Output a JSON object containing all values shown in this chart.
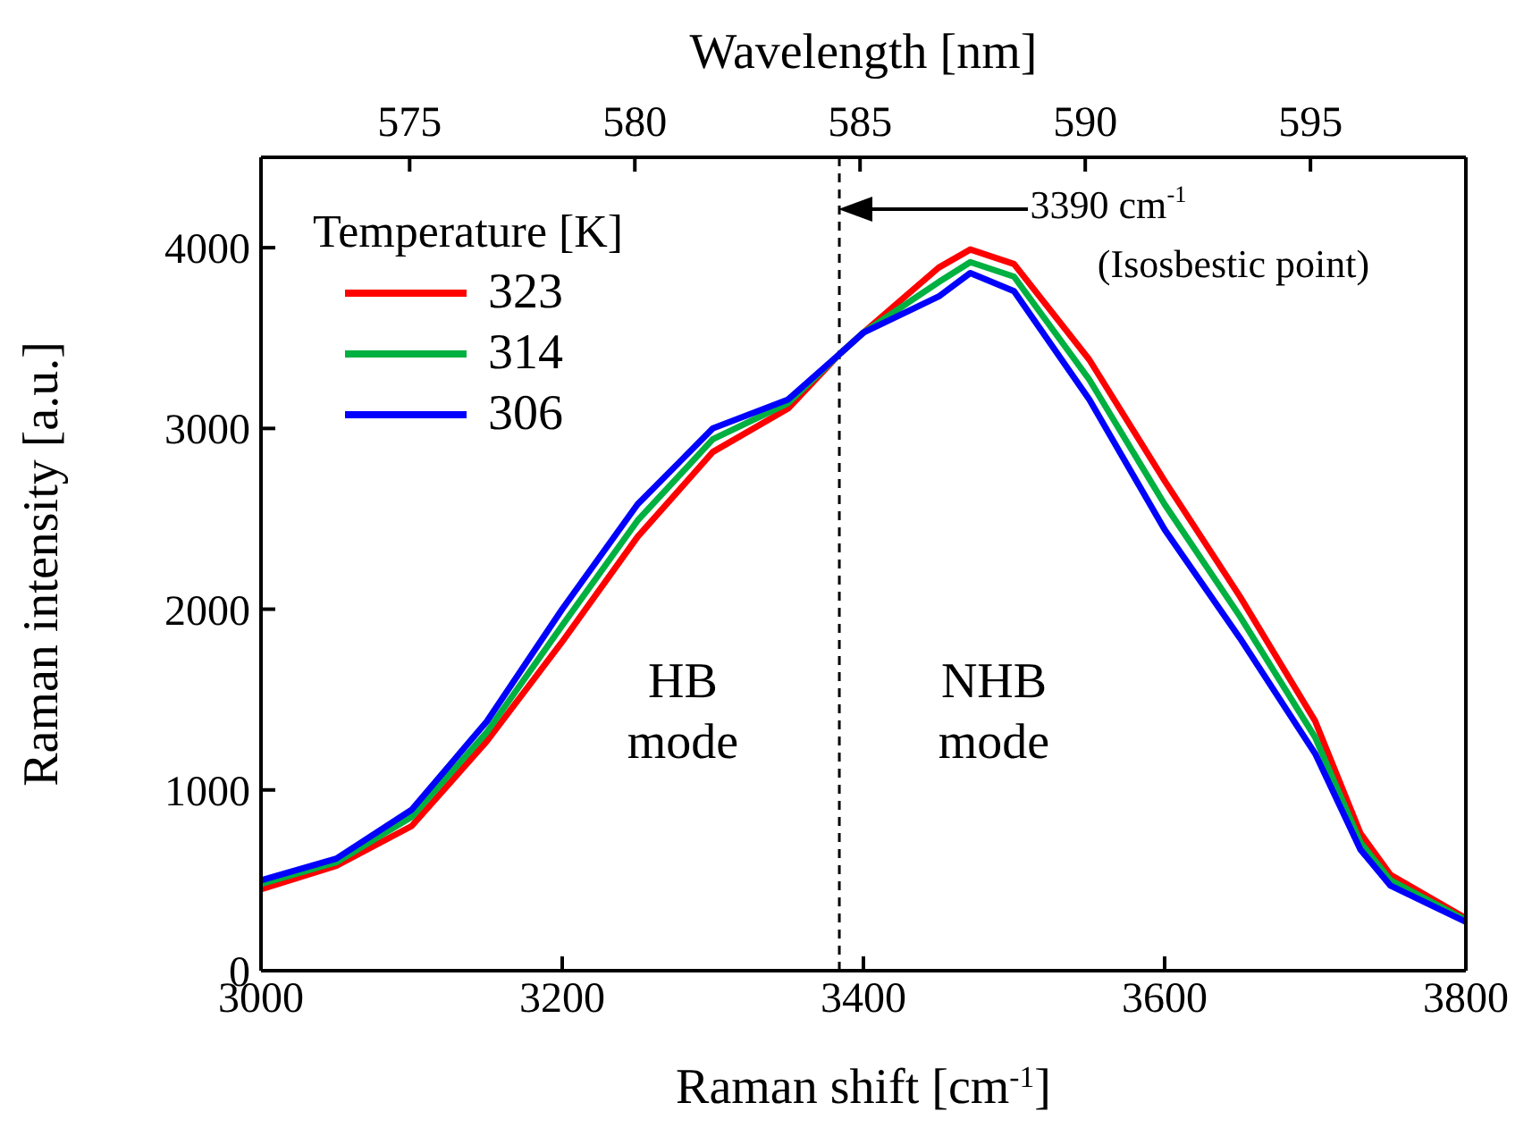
{
  "chart_data": {
    "type": "line",
    "xlabel": "Raman shift [cm$^{-1}$]",
    "ylabel": "Raman intensity [a.u.]",
    "x2label": "Wavelength [nm]",
    "legend_title": "Temperature [K]",
    "x": [
      3000,
      3050,
      3100,
      3150,
      3200,
      3250,
      3300,
      3350,
      3384,
      3400,
      3450,
      3471,
      3500,
      3550,
      3600,
      3650,
      3700,
      3730,
      3750,
      3800
    ],
    "series": [
      {
        "name": "323",
        "color": "#ff0000",
        "values": [
          450,
          580,
          800,
          1270,
          1820,
          2400,
          2870,
          3110,
          3410,
          3530,
          3890,
          3990,
          3910,
          3380,
          2710,
          2070,
          1380,
          760,
          530,
          290
        ]
      },
      {
        "name": "314",
        "color": "#00b040",
        "values": [
          480,
          600,
          850,
          1320,
          1910,
          2490,
          2940,
          3140,
          3410,
          3530,
          3810,
          3920,
          3840,
          3270,
          2580,
          1960,
          1290,
          710,
          500,
          280
        ]
      },
      {
        "name": "306",
        "color": "#0000ff",
        "values": [
          500,
          620,
          890,
          1380,
          2000,
          2580,
          3000,
          3160,
          3410,
          3530,
          3730,
          3860,
          3760,
          3160,
          2440,
          1840,
          1200,
          670,
          470,
          270
        ]
      }
    ],
    "xlim": [
      3000,
      3800
    ],
    "xticks": [
      3000,
      3200,
      3400,
      3600,
      3800
    ],
    "ylim": [
      0,
      4500
    ],
    "yticks": [
      0,
      1000,
      2000,
      3000,
      4000
    ],
    "x2lim": [
      571.7,
      598.45
    ],
    "x2ticks": [
      575,
      580,
      585,
      590,
      595
    ],
    "ref_lines": [
      {
        "axis": "x",
        "value": 3384,
        "line_style": "dashed",
        "color": "#000000"
      }
    ],
    "annotations": [
      "3390 cm$^{-1}$",
      "(Isosbestic point)",
      "HB",
      "mode",
      "NHB",
      "mode"
    ],
    "legend": "top left",
    "marker": "none",
    "line_style": "solid",
    "grid": false
  }
}
